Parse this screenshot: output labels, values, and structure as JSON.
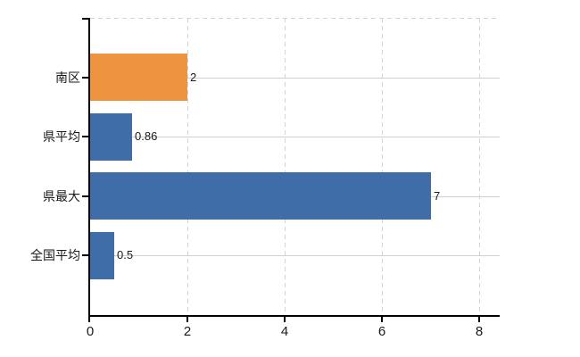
{
  "chart_data": {
    "type": "bar",
    "orientation": "horizontal",
    "title": "",
    "xlabel": "",
    "ylabel": "",
    "categories": [
      "南区",
      "県平均",
      "県最大",
      "全国平均"
    ],
    "values": [
      2,
      0.86,
      7,
      0.5
    ],
    "bar_labels": [
      "2",
      "0.86",
      "7",
      "0.5"
    ],
    "bar_colors": [
      "#EE9440",
      "#3E6DA8",
      "#3E6DA8",
      "#3E6DA8"
    ],
    "xlim": [
      0,
      8.42
    ],
    "xticks": [
      0,
      2,
      4,
      6,
      8
    ],
    "xtick_labels": [
      "0",
      "2",
      "4",
      "6",
      "8"
    ],
    "legend": "none",
    "grid": {
      "vertical_lines": "dashed",
      "horizontal_category_lines": "solid",
      "top_border": "dashed"
    },
    "colors": {
      "axis": "#000000",
      "vertical_grid": "#d4d4d4",
      "horizontal_grid": "#ccd2cb",
      "text": "#1a1a1a"
    }
  }
}
